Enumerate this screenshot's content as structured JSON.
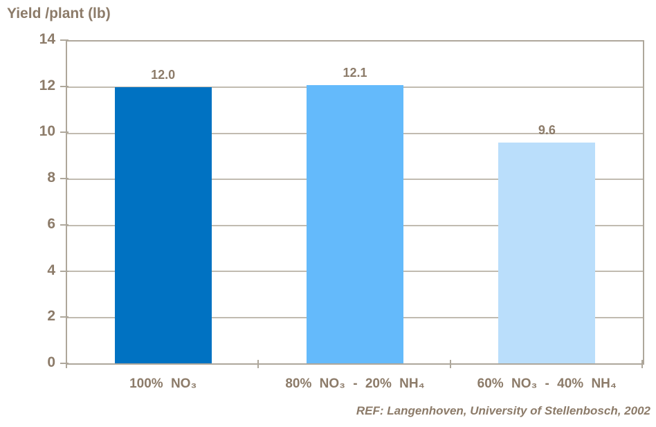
{
  "chart_title": "Yield /plant (lb)",
  "reference": "REF: Langenhoven, University of Stellenbosch, 2002",
  "colors": {
    "text": "#8C7B69",
    "gridline": "#C1BBB0",
    "axis": "#AEA79B",
    "background": "#FFFFFF"
  },
  "chart_data": {
    "type": "bar",
    "title": "Yield /plant (lb)",
    "ylabel": "Yield /plant (lb)",
    "xlabel": "",
    "categories": [
      "100% NO₃",
      "80% NO₃ - 20% NH₄",
      "60% NO₃ - 40% NH₄"
    ],
    "values": [
      12.0,
      12.1,
      9.6
    ],
    "value_labels": [
      "12.0",
      "12.1",
      "9.6"
    ],
    "bar_colors": [
      "#0072C2",
      "#64BAFB",
      "#BADEFB"
    ],
    "ylim": [
      0,
      14
    ],
    "yticks": [
      0,
      2,
      4,
      6,
      8,
      10,
      12,
      14
    ],
    "grid": true,
    "legend_position": "none",
    "annotation": "REF: Langenhoven, University of Stellenbosch, 2002"
  }
}
